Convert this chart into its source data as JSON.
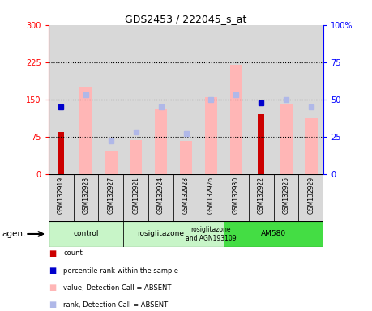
{
  "title": "GDS2453 / 222045_s_at",
  "samples": [
    "GSM132919",
    "GSM132923",
    "GSM132927",
    "GSM132921",
    "GSM132924",
    "GSM132928",
    "GSM132926",
    "GSM132930",
    "GSM132922",
    "GSM132925",
    "GSM132929"
  ],
  "count_values": [
    85,
    0,
    0,
    0,
    0,
    0,
    0,
    0,
    120,
    0,
    0
  ],
  "percentile_rank": [
    45,
    0,
    0,
    0,
    0,
    0,
    0,
    0,
    48,
    0,
    0
  ],
  "value_absent": [
    0,
    175,
    45,
    68,
    130,
    67,
    155,
    220,
    0,
    142,
    112
  ],
  "rank_absent": [
    0,
    53,
    22,
    28,
    45,
    27,
    50,
    53,
    0,
    50,
    45
  ],
  "ylim_left": [
    0,
    300
  ],
  "ylim_right": [
    0,
    100
  ],
  "yticks_left": [
    0,
    75,
    150,
    225,
    300
  ],
  "yticks_right": [
    0,
    25,
    50,
    75,
    100
  ],
  "count_color": "#cc0000",
  "percentile_color": "#0000cc",
  "value_absent_color": "#ffb6b6",
  "rank_absent_color": "#b0b8e8",
  "group_light": "#c8f5c8",
  "group_dark": "#44dd44",
  "groups": [
    {
      "label": "control",
      "start": 0,
      "end": 3,
      "dark": false
    },
    {
      "label": "rosiglitazone",
      "start": 3,
      "end": 6,
      "dark": false
    },
    {
      "label": "rosiglitazone\nand AGN193109",
      "start": 6,
      "end": 7,
      "dark": false
    },
    {
      "label": "AM580",
      "start": 7,
      "end": 11,
      "dark": true
    }
  ]
}
